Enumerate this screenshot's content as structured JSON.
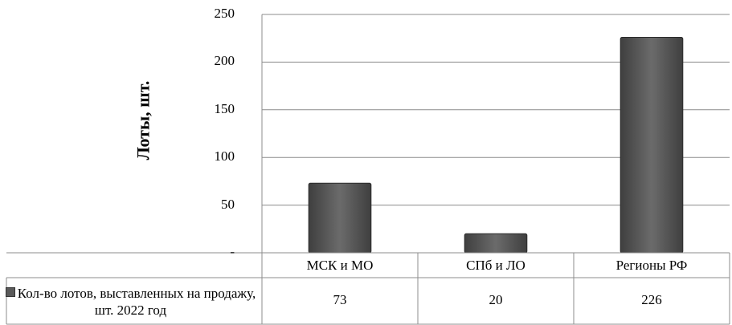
{
  "chart_data": {
    "type": "bar",
    "title": "",
    "ylabel": "Лоты, шт.",
    "xlabel": "",
    "categories": [
      "МСК и МО",
      "СПб и ЛО",
      "Регионы РФ"
    ],
    "series": [
      {
        "name": "Кол-во лотов, выставленных на продажу, шт. 2022 год",
        "values": [
          73,
          20,
          226
        ]
      }
    ],
    "ylim": [
      0,
      250
    ],
    "yticks": [
      "-",
      "50",
      "100",
      "150",
      "200",
      "250"
    ],
    "grid": true,
    "legend": "data-table",
    "data_table": true,
    "bar_color": "#595959"
  }
}
